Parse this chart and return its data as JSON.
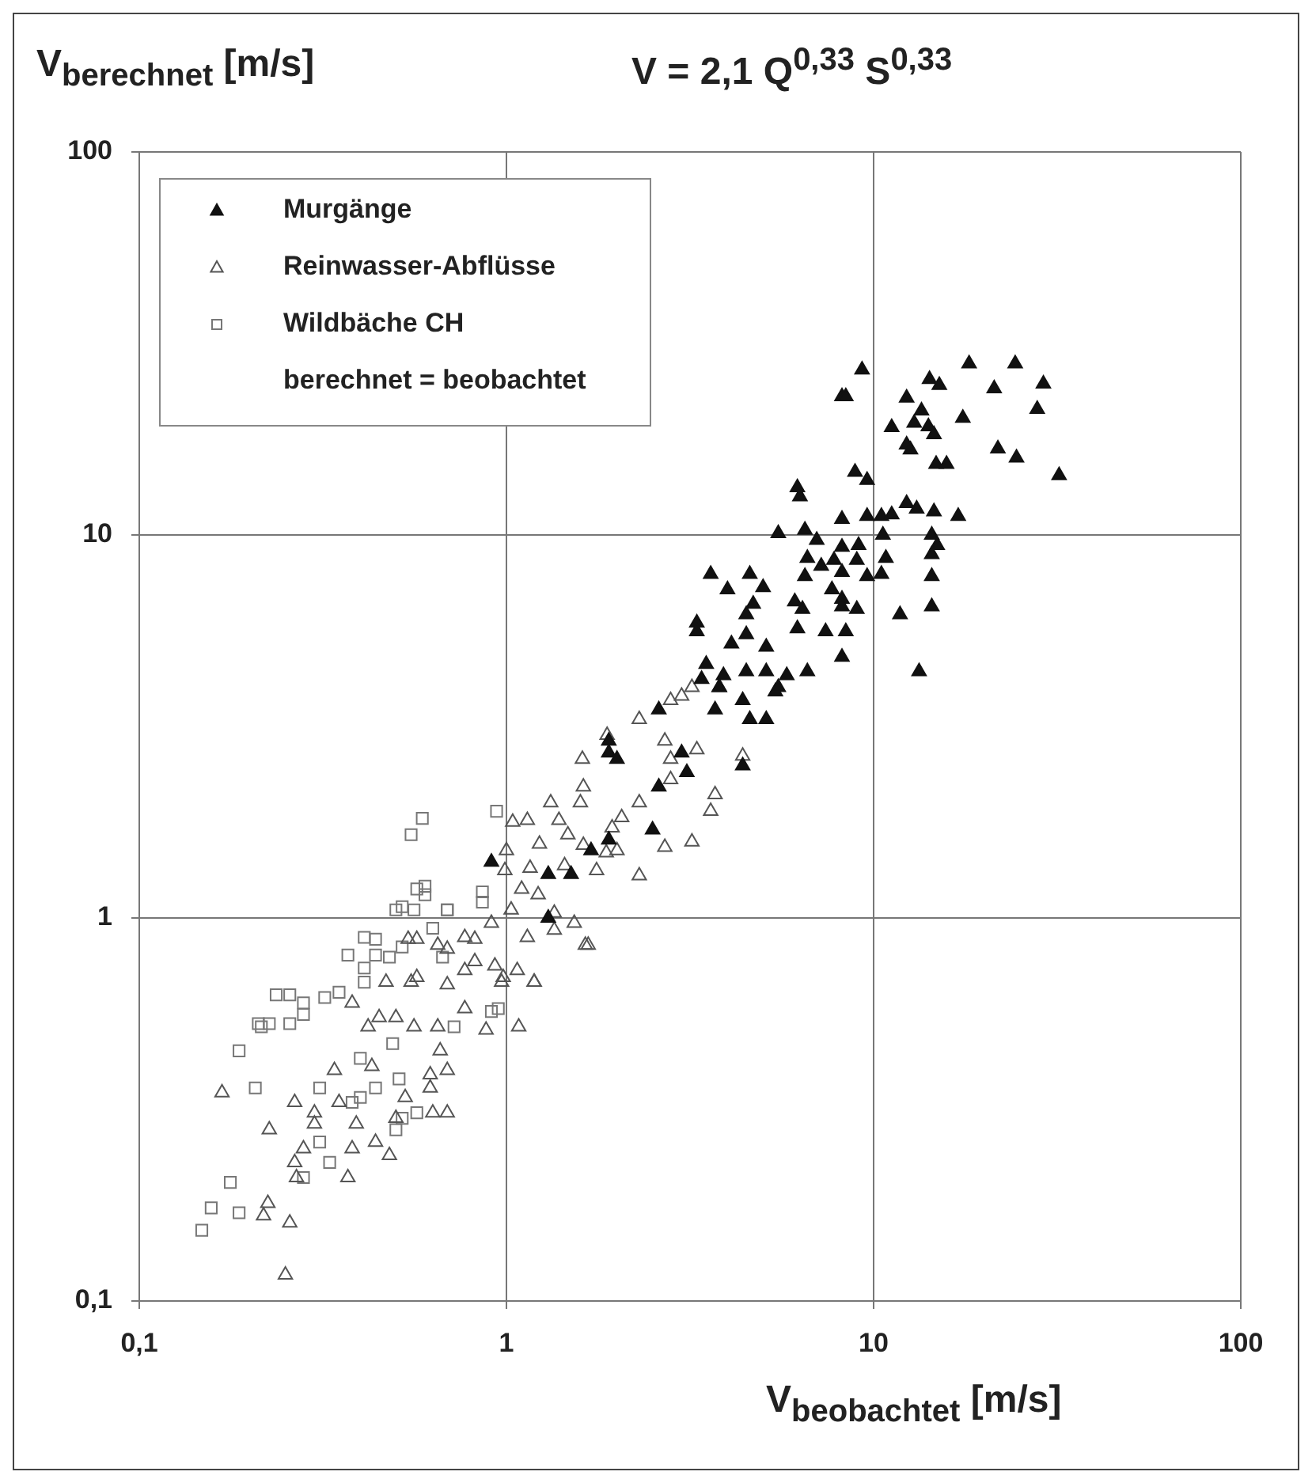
{
  "chart_data": {
    "type": "scatter",
    "title": "V = 2,1 Q$^{0,33}$ S$^{0,33}$",
    "xlabel": "V$_{beobachtet}$ [m/s]",
    "ylabel": "V$_{berechnet}$ [m/s]",
    "log": "xy",
    "grid": true,
    "legend": "top left",
    "xlim": [
      0.1,
      100
    ],
    "ylim": [
      0.1,
      100
    ],
    "xticks": [
      {
        "value": 0.1,
        "label": "0,1"
      },
      1,
      10,
      100
    ],
    "yticks": [
      {
        "value": 0.1,
        "label": "0,1"
      },
      1,
      10,
      100
    ],
    "series": [
      {
        "name": "Murgänge",
        "marker": "triangle",
        "color": "#111111",
        "x": [
          9.3,
          8.2,
          8.4,
          18.2,
          24.3,
          14.2,
          15.1,
          21.3,
          29,
          12.3,
          13.5,
          17.5,
          27.9,
          11.2,
          12.9,
          14.1,
          14.6,
          12.3,
          12.6,
          21.8,
          24.5,
          32,
          14.8,
          15.8,
          8.9,
          9.6,
          6.2,
          6.3,
          8.2,
          9.6,
          10.5,
          11.2,
          12.3,
          13.1,
          14.6,
          17,
          10.6,
          14.4,
          5.5,
          6.5,
          7,
          8.2,
          9.1,
          14.9,
          14.4,
          6.6,
          7.2,
          7.8,
          9,
          10.8,
          8.2,
          9.6,
          10.5,
          14.4,
          3.6,
          4,
          4.6,
          5,
          6.5,
          7.7,
          8.2,
          4.7,
          6.1,
          6.4,
          4.5,
          8.2,
          9,
          11.8,
          14.4,
          3.3,
          3.3,
          4.5,
          6.2,
          7.4,
          8.4,
          4.1,
          5.1,
          8.2,
          13.3,
          3.5,
          4.5,
          5.1,
          5.8,
          6.6,
          3.8,
          5.4,
          4.4,
          3.9,
          3.4,
          3.8,
          5.5,
          2.6,
          3.7,
          4.6,
          5.1,
          1.9,
          1.9,
          2,
          3,
          3.1,
          4.4,
          2.6,
          2.5,
          0.91,
          1.3,
          1.5,
          1.3,
          1.9,
          1.7
        ],
        "values": [
          27,
          23,
          23,
          28,
          28,
          25.5,
          24.6,
          24.1,
          24.8,
          22.8,
          21.1,
          20.2,
          21.3,
          19.1,
          19.6,
          19.2,
          18.3,
          17.2,
          16.7,
          16.8,
          15.9,
          14.3,
          15.3,
          15.3,
          14.6,
          13.9,
          13.3,
          12.6,
          11,
          11.2,
          11.2,
          11.3,
          12.1,
          11.7,
          11.5,
          11.2,
          10,
          10,
          10.1,
          10.3,
          9.7,
          9.3,
          9.4,
          9.4,
          8.9,
          8.7,
          8.3,
          8.6,
          8.6,
          8.7,
          8,
          7.8,
          7.9,
          7.8,
          7.9,
          7.2,
          7.9,
          7.3,
          7.8,
          7.2,
          6.8,
          6.6,
          6.7,
          6.4,
          6.2,
          6.5,
          6.4,
          6.2,
          6.5,
          5.9,
          5.6,
          5.5,
          5.7,
          5.6,
          5.6,
          5.2,
          5.1,
          4.8,
          4.4,
          4.6,
          4.4,
          4.4,
          4.3,
          4.4,
          4,
          3.9,
          3.7,
          4.3,
          4.2,
          4,
          4,
          3.5,
          3.5,
          3.3,
          3.3,
          2.9,
          2.7,
          2.6,
          2.7,
          2.4,
          2.5,
          2.2,
          1.7,
          1.4,
          1.3,
          1.3,
          1,
          1.6,
          1.5
        ]
      },
      {
        "name": "Reinwasser-Abflüsse",
        "marker": "triangle",
        "color": "#555555",
        "x": [
          0.168,
          0.226,
          0.25,
          0.224,
          0.218,
          0.257,
          0.265,
          0.265,
          0.268,
          0.28,
          0.3,
          0.3,
          0.34,
          0.35,
          0.38,
          0.37,
          0.38,
          0.39,
          0.42,
          0.43,
          0.44,
          0.48,
          0.5,
          0.53,
          0.56,
          0.62,
          0.62,
          0.69,
          0.69,
          0.63,
          0.45,
          0.5,
          0.65,
          0.66,
          0.47,
          0.57,
          0.69,
          0.77,
          0.88,
          1.08,
          0.98,
          1.19,
          0.82,
          0.93,
          0.54,
          0.65,
          0.77,
          1.03,
          0.91,
          1.64,
          1.53,
          1.14,
          2.3,
          1.88,
          1.61,
          1.62,
          1.59,
          1.32,
          1.39,
          1.14,
          1.04,
          1.23,
          1.47,
          1.62,
          2.8,
          3,
          3.2,
          2.7,
          3.3,
          2.8,
          2.8,
          3.6,
          3.7,
          3.2,
          2.7,
          2.06,
          2.3,
          1.94,
          1.87,
          2.3,
          1.76,
          1.44,
          1.16,
          1,
          0.99,
          1.1,
          1.22,
          1.35,
          1.67,
          1.35,
          1.19,
          1.07,
          0.97,
          0.82,
          0.77,
          0.69,
          0.57,
          0.55,
          2,
          4.4
        ],
        "values": [
          0.35,
          0.28,
          0.117,
          0.18,
          0.167,
          0.16,
          0.33,
          0.23,
          0.21,
          0.25,
          0.31,
          0.29,
          0.4,
          0.33,
          0.6,
          0.21,
          0.25,
          0.29,
          0.52,
          0.41,
          0.26,
          0.24,
          0.3,
          0.34,
          0.52,
          0.39,
          0.36,
          0.4,
          0.31,
          0.31,
          0.55,
          0.55,
          0.52,
          0.45,
          0.68,
          0.7,
          0.67,
          0.58,
          0.51,
          0.52,
          0.7,
          0.68,
          0.77,
          0.75,
          0.88,
          0.85,
          0.89,
          1.05,
          0.97,
          0.85,
          0.97,
          0.89,
          3.3,
          3,
          2.6,
          2.2,
          2,
          2,
          1.8,
          1.8,
          1.78,
          1.56,
          1.65,
          1.55,
          3.7,
          3.8,
          4,
          2.9,
          2.75,
          2.6,
          2.3,
          1.9,
          2.1,
          1.58,
          1.53,
          1.83,
          2,
          1.72,
          1.48,
          1.29,
          1.33,
          1.37,
          1.35,
          1.5,
          1.33,
          1.19,
          1.15,
          1.03,
          0.85,
          0.93,
          0.68,
          0.73,
          0.68,
          0.88,
          0.73,
          0.83,
          0.88,
          0.68,
          1.5,
          2.65
        ]
      },
      {
        "name": "Wildbäche CH",
        "marker": "square",
        "color": "#777777",
        "x": [
          0.148,
          0.157,
          0.187,
          0.177,
          0.187,
          0.207,
          0.211,
          0.226,
          0.215,
          0.257,
          0.236,
          0.257,
          0.28,
          0.28,
          0.32,
          0.35,
          0.31,
          0.31,
          0.33,
          0.28,
          0.37,
          0.41,
          0.44,
          0.41,
          0.41,
          0.44,
          0.48,
          0.52,
          0.5,
          0.56,
          0.6,
          0.69,
          0.63,
          0.67,
          0.4,
          0.49,
          0.51,
          0.57,
          0.5,
          0.52,
          0.72,
          0.91,
          0.95,
          0.86,
          0.4,
          0.38,
          0.44,
          0.59,
          0.55,
          0.94,
          0.6,
          0.57,
          0.69,
          0.86,
          0.52
        ],
        "values": [
          0.153,
          0.175,
          0.17,
          0.204,
          0.45,
          0.36,
          0.53,
          0.53,
          0.52,
          0.53,
          0.63,
          0.63,
          0.6,
          0.56,
          0.62,
          0.64,
          0.36,
          0.26,
          0.23,
          0.21,
          0.8,
          0.89,
          0.88,
          0.74,
          0.68,
          0.8,
          0.79,
          0.84,
          1.05,
          1.05,
          1.15,
          1.05,
          0.94,
          0.79,
          0.43,
          0.47,
          0.38,
          0.31,
          0.28,
          0.3,
          0.52,
          0.57,
          0.58,
          1.17,
          0.34,
          0.33,
          0.36,
          1.82,
          1.65,
          1.9,
          1.21,
          1.19,
          1.05,
          1.1,
          1.07
        ]
      }
    ],
    "annotations": [
      "berechnet = beobachtet"
    ]
  }
}
